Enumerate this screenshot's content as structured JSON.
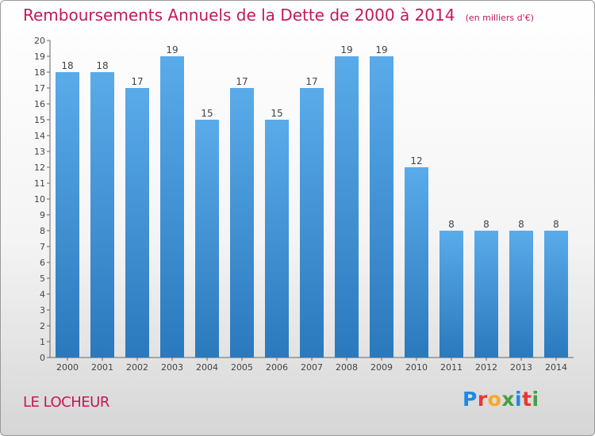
{
  "chart_data": {
    "type": "bar",
    "title": "Remboursements Annuels de la Dette de 2000 à 2014",
    "subtitle": "(en milliers d'€)",
    "categories": [
      "2000",
      "2001",
      "2002",
      "2003",
      "2004",
      "2005",
      "2006",
      "2007",
      "2008",
      "2009",
      "2010",
      "2011",
      "2012",
      "2013",
      "2014"
    ],
    "values": [
      18,
      18,
      17,
      19,
      15,
      17,
      15,
      17,
      19,
      19,
      12,
      8,
      8,
      8,
      8
    ],
    "ylim": [
      0,
      20
    ],
    "yticks": [
      0,
      1,
      2,
      3,
      4,
      5,
      6,
      7,
      8,
      9,
      10,
      11,
      12,
      13,
      14,
      15,
      16,
      17,
      18,
      19,
      20
    ],
    "xlabel": "",
    "ylabel": "",
    "grid": false,
    "data_labels": true,
    "bar_color_top": "#5aabea",
    "bar_color_bottom": "#2a79bd"
  },
  "commune": "LE LOCHEUR",
  "logo": {
    "letters": [
      "P",
      "r",
      "o",
      "x",
      "i",
      "t",
      "i"
    ]
  },
  "colors": {
    "title": "#c2185b",
    "axis": "#555555"
  }
}
